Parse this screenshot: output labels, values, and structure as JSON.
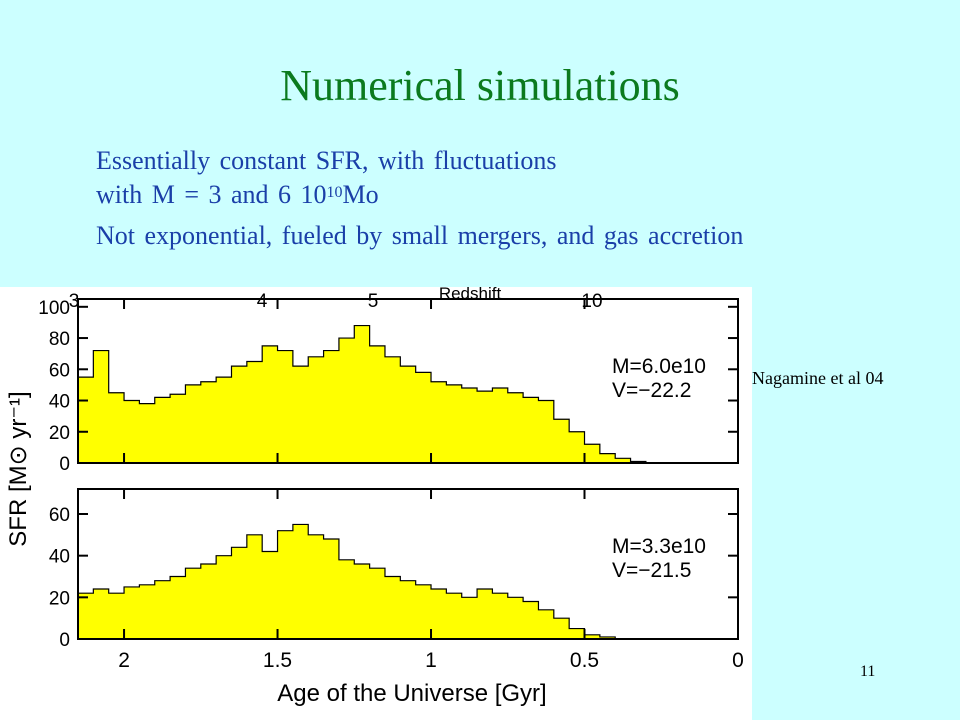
{
  "slide": {
    "title": "Numerical simulations",
    "bullets": {
      "line1": "Essentially constant SFR, with fluctuations",
      "line2_pre": "with M = 3 and 6 10",
      "line2_sup": "10",
      "line2_post": "Mo",
      "line3": "Not exponential, fueled by small mergers, and gas accretion"
    },
    "citation": "Nagamine et al 04",
    "slide_number": "11"
  },
  "colors": {
    "title": "#0b7a1e",
    "bullets": "#1a3fa8",
    "fill": "#ffff00",
    "background": "#ccffff"
  },
  "chart_data": {
    "type": "area",
    "top_axis": {
      "label": "Redshift",
      "ticks": [
        "3",
        "4",
        "5",
        "10"
      ]
    },
    "xlabel": "Age of the Universe [Gyr]",
    "ylabel": "SFR [M⊙ yr⁻¹]",
    "x_ticks": [
      "2",
      "1.5",
      "1",
      "0.5",
      "0"
    ],
    "xlim": [
      2.15,
      0
    ],
    "panels": [
      {
        "annotation": [
          "M=6.0e10",
          "V=−22.2"
        ],
        "ylim": [
          0,
          105
        ],
        "y_ticks": [
          "0",
          "20",
          "40",
          "60",
          "80",
          "100"
        ],
        "x": [
          2.15,
          2.1,
          2.05,
          2.0,
          1.95,
          1.9,
          1.85,
          1.8,
          1.75,
          1.7,
          1.65,
          1.6,
          1.55,
          1.5,
          1.45,
          1.4,
          1.35,
          1.3,
          1.25,
          1.2,
          1.15,
          1.1,
          1.05,
          1.0,
          0.95,
          0.9,
          0.85,
          0.8,
          0.75,
          0.7,
          0.65,
          0.6,
          0.55,
          0.5,
          0.45,
          0.4,
          0.35,
          0.3,
          0.25
        ],
        "values": [
          55,
          72,
          45,
          40,
          38,
          42,
          44,
          50,
          52,
          55,
          62,
          65,
          75,
          72,
          62,
          68,
          72,
          80,
          88,
          75,
          68,
          62,
          58,
          52,
          50,
          48,
          46,
          48,
          45,
          42,
          40,
          28,
          20,
          12,
          6,
          3,
          1,
          0,
          0
        ]
      },
      {
        "annotation": [
          "M=3.3e10",
          "V=−21.5"
        ],
        "ylim": [
          0,
          72
        ],
        "y_ticks": [
          "0",
          "20",
          "40",
          "60"
        ],
        "x": [
          2.15,
          2.1,
          2.05,
          2.0,
          1.95,
          1.9,
          1.85,
          1.8,
          1.75,
          1.7,
          1.65,
          1.6,
          1.55,
          1.5,
          1.45,
          1.4,
          1.35,
          1.3,
          1.25,
          1.2,
          1.15,
          1.1,
          1.05,
          1.0,
          0.95,
          0.9,
          0.85,
          0.8,
          0.75,
          0.7,
          0.65,
          0.6,
          0.55,
          0.5,
          0.45,
          0.4,
          0.35,
          0.3
        ],
        "values": [
          22,
          24,
          22,
          25,
          26,
          28,
          30,
          34,
          36,
          40,
          44,
          50,
          42,
          52,
          55,
          50,
          48,
          38,
          36,
          34,
          30,
          28,
          26,
          24,
          22,
          20,
          24,
          22,
          20,
          18,
          14,
          10,
          5,
          2,
          1,
          0,
          0,
          0
        ]
      }
    ]
  }
}
